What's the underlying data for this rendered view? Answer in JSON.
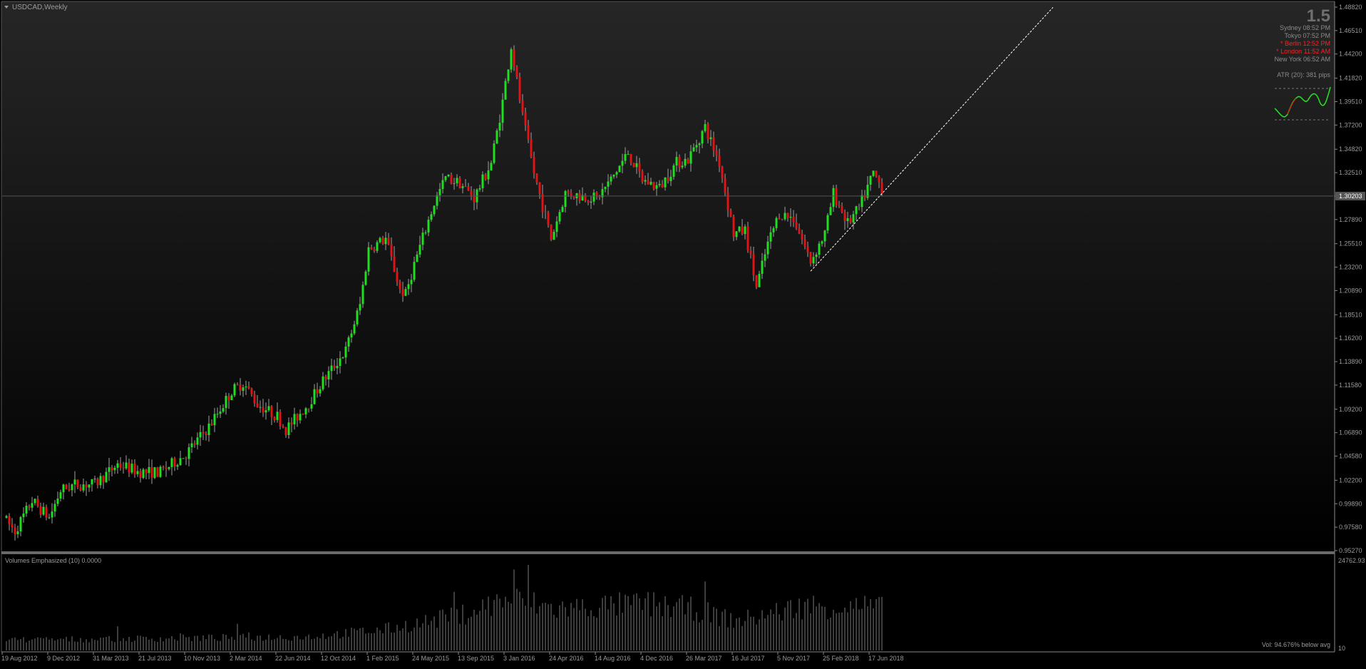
{
  "window": {
    "symbol_label": "USDCAD,Weekly",
    "spread": "1.5"
  },
  "clocks": [
    {
      "city": "Sydney",
      "time": "08:52 PM",
      "highlight": false
    },
    {
      "city": "Tokyo",
      "time": "07:52 PM",
      "highlight": false
    },
    {
      "city": "* Berlin",
      "time": "12:52 PM",
      "highlight": true
    },
    {
      "city": "* London",
      "time": "11:52 AM",
      "highlight": true
    },
    {
      "city": "New York",
      "time": "06:52 AM",
      "highlight": false
    }
  ],
  "atr_label": "ATR (20): 381 pips",
  "volume_panel": {
    "title": "Volumes Emphasized  (10)  0.0000",
    "max_label": "24762.93",
    "min_label": "10",
    "status": "Vol:  94.676% below avg"
  },
  "colors": {
    "background_top": "#262626",
    "background_bottom": "#000000",
    "bull": "#1fe01f",
    "bear": "#e01414",
    "wick": "#a0a0a0",
    "axis_text": "#9a9a9a",
    "highlight_text": "#ff2020",
    "trendline": "#ffffff",
    "price_line": "#555555",
    "volume_bar": "#7a7a7a"
  },
  "chart_data": {
    "type": "candlestick",
    "title": "USDCAD,Weekly",
    "ylim": [
      0.9527,
      1.4882
    ],
    "y_ticks": [
      "1.48820",
      "1.46510",
      "1.44200",
      "1.41820",
      "1.39510",
      "1.37200",
      "1.34820",
      "1.32510",
      "1.30203",
      "1.27890",
      "1.25510",
      "1.23200",
      "1.20890",
      "1.18510",
      "1.16200",
      "1.13890",
      "1.11580",
      "1.09200",
      "1.06890",
      "1.04580",
      "1.02200",
      "0.99890",
      "0.97580",
      "0.95270"
    ],
    "current_price": 1.30203,
    "x_ticks": [
      "19 Aug 2012",
      "9 Dec 2012",
      "31 Mar 2013",
      "21 Jul 2013",
      "10 Nov 2013",
      "2 Mar 2014",
      "22 Jun 2014",
      "12 Oct 2014",
      "1 Feb 2015",
      "24 May 2015",
      "13 Sep 2015",
      "3 Jan 2016",
      "24 Apr 2016",
      "14 Aug 2016",
      "4 Dec 2016",
      "26 Mar 2017",
      "16 Jul 2017",
      "5 Nov 2017",
      "25 Feb 2018",
      "17 Jun 2018"
    ],
    "x_start": "2012-08-19",
    "weeks": 308,
    "anchors": [
      [
        "2012-08-19",
        0.985
      ],
      [
        "2012-09-16",
        0.972
      ],
      [
        "2012-10-28",
        1.002
      ],
      [
        "2012-12-09",
        0.985
      ],
      [
        "2013-01-06",
        1.012
      ],
      [
        "2013-02-10",
        1.018
      ],
      [
        "2013-03-31",
        1.018
      ],
      [
        "2013-05-26",
        1.038
      ],
      [
        "2013-07-21",
        1.03
      ],
      [
        "2013-09-08",
        1.03
      ],
      [
        "2013-11-10",
        1.048
      ],
      [
        "2014-01-05",
        1.075
      ],
      [
        "2014-03-02",
        1.11
      ],
      [
        "2014-03-30",
        1.118
      ],
      [
        "2014-05-04",
        1.097
      ],
      [
        "2014-06-22",
        1.085
      ],
      [
        "2014-07-13",
        1.072
      ],
      [
        "2014-09-07",
        1.098
      ],
      [
        "2014-10-12",
        1.12
      ],
      [
        "2014-12-07",
        1.15
      ],
      [
        "2015-01-11",
        1.195
      ],
      [
        "2015-02-01",
        1.25
      ],
      [
        "2015-03-15",
        1.26
      ],
      [
        "2015-04-19",
        1.21
      ],
      [
        "2015-05-03",
        1.205
      ],
      [
        "2015-05-24",
        1.235
      ],
      [
        "2015-07-12",
        1.295
      ],
      [
        "2015-08-09",
        1.32
      ],
      [
        "2015-09-13",
        1.315
      ],
      [
        "2015-10-18",
        1.3
      ],
      [
        "2015-11-29",
        1.335
      ],
      [
        "2015-12-27",
        1.395
      ],
      [
        "2016-01-17",
        1.45
      ],
      [
        "2016-02-14",
        1.38
      ],
      [
        "2016-03-13",
        1.325
      ],
      [
        "2016-04-24",
        1.26
      ],
      [
        "2016-05-29",
        1.305
      ],
      [
        "2016-07-10",
        1.302
      ],
      [
        "2016-08-14",
        1.3
      ],
      [
        "2016-09-18",
        1.318
      ],
      [
        "2016-10-30",
        1.345
      ],
      [
        "2016-12-04",
        1.318
      ],
      [
        "2017-01-15",
        1.31
      ],
      [
        "2017-02-26",
        1.335
      ],
      [
        "2017-03-26",
        1.338
      ],
      [
        "2017-05-07",
        1.37
      ],
      [
        "2017-06-11",
        1.335
      ],
      [
        "2017-07-16",
        1.265
      ],
      [
        "2017-08-13",
        1.268
      ],
      [
        "2017-09-10",
        1.212
      ],
      [
        "2017-10-08",
        1.255
      ],
      [
        "2017-11-05",
        1.285
      ],
      [
        "2017-12-10",
        1.28
      ],
      [
        "2018-01-21",
        1.238
      ],
      [
        "2018-02-25",
        1.265
      ],
      [
        "2018-03-18",
        1.305
      ],
      [
        "2018-04-22",
        1.275
      ],
      [
        "2018-05-20",
        1.29
      ],
      [
        "2018-06-24",
        1.325
      ],
      [
        "2018-07-22",
        1.305
      ],
      [
        "2018-08-05",
        1.302
      ]
    ],
    "trendline": {
      "from": [
        "2018-01-14",
        1.228
      ],
      "to": [
        "2019-09-01",
        1.488
      ]
    },
    "volume": {
      "min": 10,
      "max": 24762.93,
      "anchors": [
        [
          "2012-08-19",
          3000
        ],
        [
          "2014-09-01",
          4000
        ],
        [
          "2015-03-01",
          6000
        ],
        [
          "2015-09-01",
          10000
        ],
        [
          "2016-01-03",
          15000
        ],
        [
          "2016-05-01",
          12000
        ],
        [
          "2016-12-04",
          13500
        ],
        [
          "2017-04-01",
          12000
        ],
        [
          "2017-07-16",
          8500
        ],
        [
          "2018-01-01",
          13000
        ],
        [
          "2018-06-17",
          12500
        ],
        [
          "2018-08-05",
          11500
        ]
      ]
    }
  }
}
